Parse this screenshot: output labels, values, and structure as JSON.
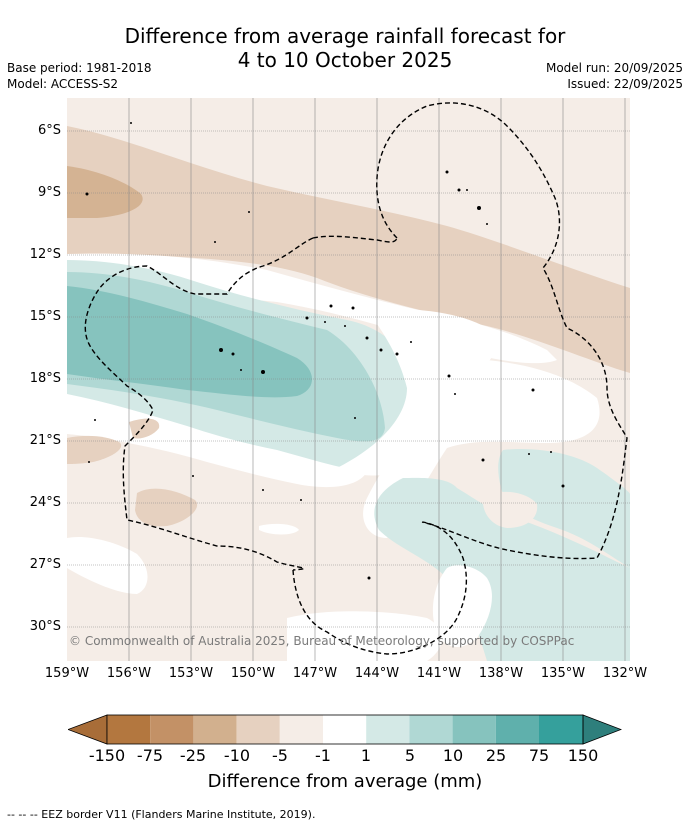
{
  "title": {
    "line1": "Difference from average rainfall forecast for",
    "line2": "4 to 10 October 2025"
  },
  "meta": {
    "base_period": "Base period: 1981-2018",
    "model": "Model: ACCESS-S2",
    "model_run": "Model run: 20/09/2025",
    "issued": "Issued: 22/09/2025"
  },
  "map": {
    "latitude_labels": [
      "6°S",
      "9°S",
      "12°S",
      "15°S",
      "18°S",
      "21°S",
      "24°S",
      "27°S",
      "30°S"
    ],
    "longitude_labels": [
      "159°W",
      "156°W",
      "153°W",
      "150°W",
      "147°W",
      "144°W",
      "141°W",
      "138°W",
      "135°W",
      "132°W"
    ],
    "copyright": "© Commonwealth of Australia 2025, Bureau of Meteorology, supported by COSPPac",
    "colors": {
      "dry_1": "#f5ede7",
      "dry_5": "#e6d1c0",
      "dry_10": "#d4b393",
      "neutral": "#ffffff",
      "wet_1": "#d4e9e6",
      "wet_5": "#b0d8d4",
      "wet_10": "#86c3be",
      "eez": "#000000",
      "grid": "#888888"
    }
  },
  "colorbar": {
    "labels": [
      "-150",
      "-75",
      "-25",
      "-10",
      "-5",
      "-1",
      "1",
      "5",
      "10",
      "25",
      "75",
      "150"
    ],
    "colors": [
      "#a86d38",
      "#b3773f",
      "#c39166",
      "#d2b08e",
      "#e6d1c0",
      "#f5ede7",
      "#ffffff",
      "#d4e9e6",
      "#b0d8d4",
      "#86c3be",
      "#5fb0ac",
      "#35a09c",
      "#2e7f7c"
    ],
    "title": "Difference from average (mm)"
  },
  "footer": "--  --  -- EEZ border V11 (Flanders Marine Institute, 2019)."
}
